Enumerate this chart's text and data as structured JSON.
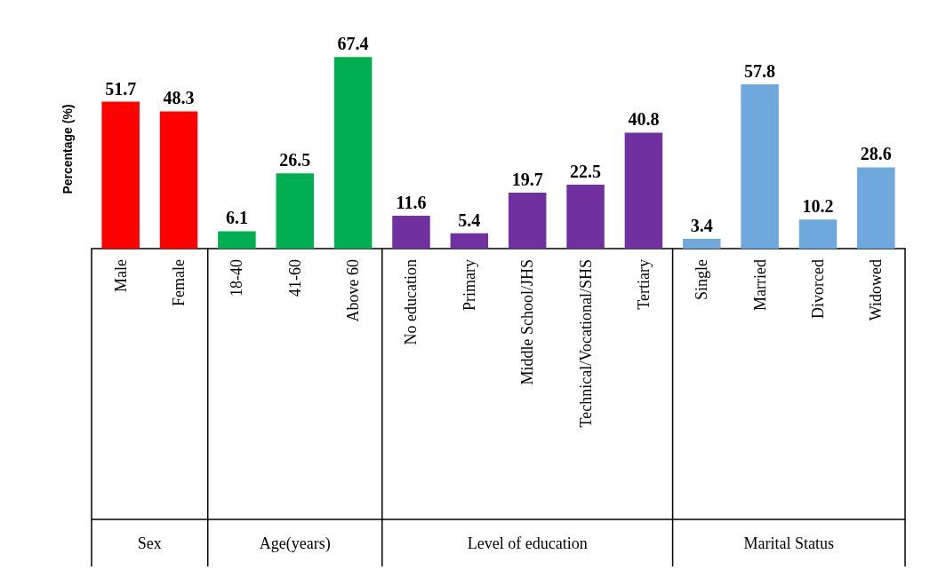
{
  "chart_data": {
    "type": "bar",
    "ylabel": "Percentage (%)",
    "categories": [
      "Male",
      "Female",
      "18-40",
      "41-60",
      "Above 60",
      "No education",
      "Primary",
      "Middle School/JHS",
      "Technical/Vocational/SHS",
      "Tertiary",
      "Single",
      "Married",
      "Divorced",
      "Widowed"
    ],
    "values": [
      51.7,
      48.3,
      6.1,
      26.5,
      67.4,
      11.6,
      5.4,
      19.7,
      22.5,
      40.8,
      3.4,
      57.8,
      10.2,
      28.6
    ],
    "colors": [
      "#ff0000",
      "#ff0000",
      "#00b050",
      "#00b050",
      "#00b050",
      "#7030a0",
      "#7030a0",
      "#7030a0",
      "#7030a0",
      "#7030a0",
      "#6fa8dc",
      "#6fa8dc",
      "#6fa8dc",
      "#6fa8dc"
    ],
    "annotations": [
      "Sex",
      "Age(years)",
      "Level of education",
      "Marital Status"
    ],
    "data_labels": true
  }
}
